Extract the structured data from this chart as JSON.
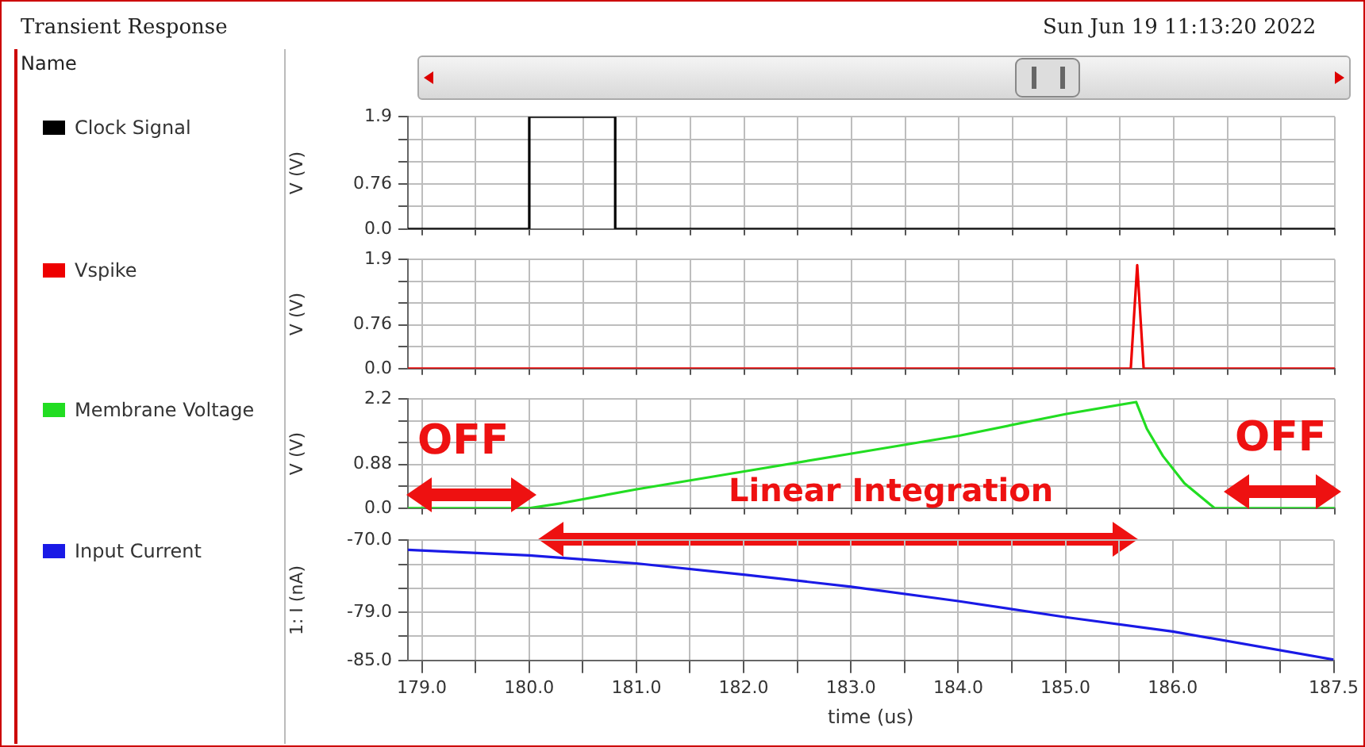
{
  "chart_data": [
    {
      "type": "line",
      "annotations": [
        "Transient Response",
        "Sun Jun 19 11:13:20 2022",
        "Name"
      ],
      "ylabel": "V (V)",
      "legend": "left",
      "grid": true,
      "marker": "none",
      "tick_labels": "y",
      "xlim": [
        178.87,
        187.5
      ],
      "ylim": [
        0,
        1.9
      ],
      "xticks": [
        {
          "value": 179,
          "label": null
        },
        {
          "value": 179.5,
          "label": null
        },
        {
          "value": 180,
          "label": null
        },
        {
          "value": 180.5,
          "label": null
        },
        {
          "value": 181,
          "label": null
        },
        {
          "value": 181.5,
          "label": null
        },
        {
          "value": 182,
          "label": null
        },
        {
          "value": 182.5,
          "label": null
        },
        {
          "value": 183,
          "label": null
        },
        {
          "value": 183.5,
          "label": null
        },
        {
          "value": 184,
          "label": null
        },
        {
          "value": 184.5,
          "label": null
        },
        {
          "value": 185,
          "label": null
        },
        {
          "value": 185.5,
          "label": null
        },
        {
          "value": 186,
          "label": null
        },
        {
          "value": 186.5,
          "label": null
        },
        {
          "value": 187,
          "label": null
        },
        {
          "value": 187.5,
          "label": null
        }
      ],
      "yticks": [
        {
          "value": 0,
          "label": "0.0"
        },
        {
          "value": 0.38,
          "label": null
        },
        0.76,
        {
          "value": 1.14,
          "label": null
        },
        {
          "value": 1.52,
          "label": null
        },
        1.9
      ],
      "x": [
        178.87,
        180.0,
        180.0,
        180.8,
        180.8,
        187.5
      ],
      "series": [
        {
          "name": "Clock Signal",
          "color": "#000000",
          "values": [
            0,
            0,
            1.9,
            1.9,
            0,
            0
          ]
        }
      ]
    },
    {
      "type": "line",
      "ylabel": "V (V)",
      "legend": "left",
      "grid": true,
      "marker": "none",
      "tick_labels": "y",
      "xlim": [
        178.87,
        187.5
      ],
      "ylim": [
        0,
        1.9
      ],
      "xticks": [
        {
          "value": 179,
          "label": null
        },
        {
          "value": 179.5,
          "label": null
        },
        {
          "value": 180,
          "label": null
        },
        {
          "value": 180.5,
          "label": null
        },
        {
          "value": 181,
          "label": null
        },
        {
          "value": 181.5,
          "label": null
        },
        {
          "value": 182,
          "label": null
        },
        {
          "value": 182.5,
          "label": null
        },
        {
          "value": 183,
          "label": null
        },
        {
          "value": 183.5,
          "label": null
        },
        {
          "value": 184,
          "label": null
        },
        {
          "value": 184.5,
          "label": null
        },
        {
          "value": 185,
          "label": null
        },
        {
          "value": 185.5,
          "label": null
        },
        {
          "value": 186,
          "label": null
        },
        {
          "value": 186.5,
          "label": null
        },
        {
          "value": 187,
          "label": null
        },
        {
          "value": 187.5,
          "label": null
        }
      ],
      "yticks": [
        {
          "value": 0,
          "label": "0.0"
        },
        {
          "value": 0.38,
          "label": null
        },
        0.76,
        {
          "value": 1.14,
          "label": null
        },
        {
          "value": 1.52,
          "label": null
        },
        1.9
      ],
      "x": [
        178.87,
        185.6,
        185.66,
        185.72,
        187.5
      ],
      "series": [
        {
          "name": "Vspike",
          "color": "#ee0000",
          "values": [
            0,
            0,
            1.8,
            0,
            0
          ]
        }
      ]
    },
    {
      "type": "line",
      "ylabel": "V (V)",
      "legend": "left",
      "grid": true,
      "marker": "none",
      "tick_labels": "y",
      "annotations": [
        "OFF",
        "Linear Integration",
        "OFF"
      ],
      "xlim": [
        178.87,
        187.5
      ],
      "ylim": [
        0,
        2.2
      ],
      "xticks": [
        {
          "value": 179,
          "label": null
        },
        {
          "value": 179.5,
          "label": null
        },
        {
          "value": 180,
          "label": null
        },
        {
          "value": 180.5,
          "label": null
        },
        {
          "value": 181,
          "label": null
        },
        {
          "value": 181.5,
          "label": null
        },
        {
          "value": 182,
          "label": null
        },
        {
          "value": 182.5,
          "label": null
        },
        {
          "value": 183,
          "label": null
        },
        {
          "value": 183.5,
          "label": null
        },
        {
          "value": 184,
          "label": null
        },
        {
          "value": 184.5,
          "label": null
        },
        {
          "value": 185,
          "label": null
        },
        {
          "value": 185.5,
          "label": null
        },
        {
          "value": 186,
          "label": null
        },
        {
          "value": 186.5,
          "label": null
        },
        {
          "value": 187,
          "label": null
        },
        {
          "value": 187.5,
          "label": null
        }
      ],
      "yticks": [
        {
          "value": 0,
          "label": "0.0"
        },
        {
          "value": 0.44,
          "label": null
        },
        0.88,
        {
          "value": 1.32,
          "label": null
        },
        {
          "value": 1.76,
          "label": null
        },
        2.2
      ],
      "x": [
        178.87,
        180.0,
        180.3,
        181.0,
        182.0,
        183.0,
        184.0,
        185.0,
        185.65,
        185.75,
        185.9,
        186.1,
        186.38,
        187.5
      ],
      "series": [
        {
          "name": "Membrane Voltage",
          "color": "#22dd22",
          "values": [
            0,
            0,
            0.1,
            0.38,
            0.74,
            1.1,
            1.46,
            1.9,
            2.14,
            1.6,
            1.05,
            0.5,
            0,
            0
          ]
        }
      ]
    },
    {
      "type": "line",
      "ylabel": "1: I (nA)",
      "xlabel": "time (us)",
      "legend": "left",
      "grid": true,
      "marker": "none",
      "xlim": [
        178.87,
        187.5
      ],
      "ylim": [
        -85,
        -70
      ],
      "xticks": [
        {
          "value": 179,
          "label": "179.0"
        },
        {
          "value": 179.5,
          "label": null
        },
        {
          "value": 180,
          "label": "180.0"
        },
        {
          "value": 180.5,
          "label": null
        },
        {
          "value": 181,
          "label": "181.0"
        },
        {
          "value": 181.5,
          "label": null
        },
        {
          "value": 182,
          "label": "182.0"
        },
        {
          "value": 182.5,
          "label": null
        },
        {
          "value": 183,
          "label": "183.0"
        },
        {
          "value": 183.5,
          "label": null
        },
        {
          "value": 184,
          "label": "184.0"
        },
        {
          "value": 184.5,
          "label": null
        },
        {
          "value": 185,
          "label": "185.0"
        },
        {
          "value": 185.5,
          "label": null
        },
        {
          "value": 186,
          "label": "186.0"
        },
        {
          "value": 186.5,
          "label": null
        },
        {
          "value": 187,
          "label": null
        },
        187.5
      ],
      "yticks": [
        {
          "value": -85,
          "label": "-85.0"
        },
        {
          "value": -82,
          "label": null
        },
        {
          "value": -79,
          "label": "-79.0"
        },
        {
          "value": -76,
          "label": null
        },
        {
          "value": -73,
          "label": null
        },
        {
          "value": -70,
          "label": "-70.0"
        }
      ],
      "x": [
        178.87,
        180.0,
        181.0,
        182.0,
        183.0,
        184.0,
        185.0,
        186.0,
        187.5
      ],
      "series": [
        {
          "name": "Input Current",
          "color": "#1a1ae6",
          "values": [
            -71.2,
            -71.9,
            -72.9,
            -74.3,
            -75.8,
            -77.6,
            -79.6,
            -81.4,
            -84.9
          ]
        }
      ]
    }
  ]
}
